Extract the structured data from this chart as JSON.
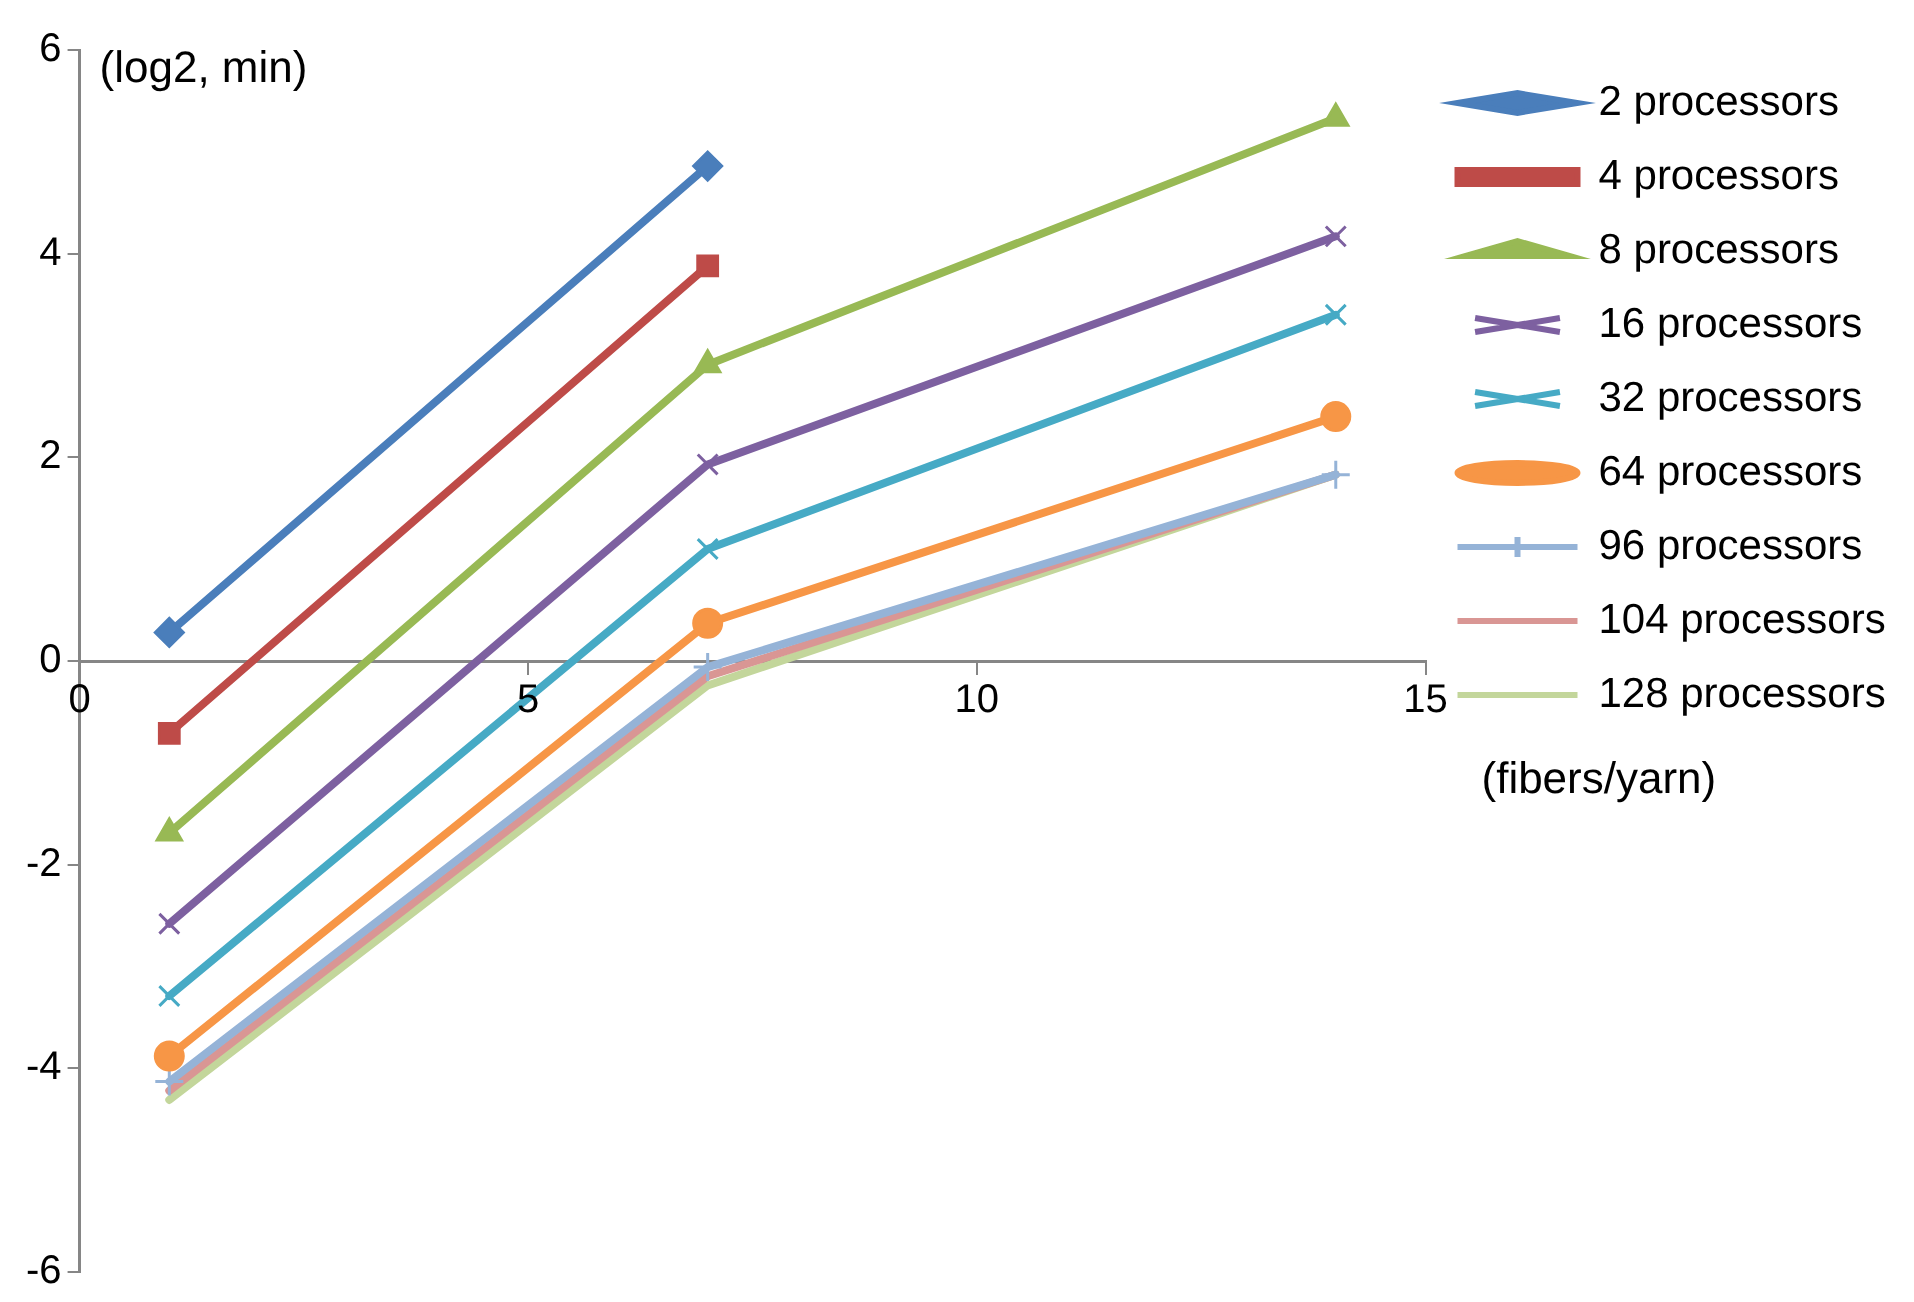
{
  "chart_data": {
    "type": "line",
    "xlabel": "(fibers/yarn)",
    "ylabel": "(log2, min)",
    "xlim": [
      0,
      15
    ],
    "xticks": [
      0,
      5,
      10,
      15
    ],
    "ylim": [
      -6,
      6
    ],
    "yticks": [
      -6,
      -4,
      -2,
      0,
      2,
      4,
      6
    ],
    "grid": false,
    "legend": "right",
    "line_style": "solid",
    "series": [
      {
        "name": "2 processors",
        "color": "#4a7ebb",
        "marker": "diamond",
        "x": [
          1,
          7
        ],
        "values": [
          0.28,
          4.86
        ]
      },
      {
        "name": "4 processors",
        "color": "#be4b48",
        "marker": "square",
        "x": [
          1,
          7
        ],
        "values": [
          -0.71,
          3.88
        ]
      },
      {
        "name": "8 processors",
        "color": "#98b954",
        "marker": "triangle",
        "x": [
          1,
          7,
          14
        ],
        "values": [
          -1.69,
          2.91,
          5.33
        ]
      },
      {
        "name": "16 processors",
        "color": "#7d60a0",
        "marker": "cross",
        "x": [
          1,
          7,
          14
        ],
        "values": [
          -2.58,
          1.93,
          4.17
        ]
      },
      {
        "name": "32 processors",
        "color": "#46aac5",
        "marker": "cross",
        "x": [
          1,
          7,
          14
        ],
        "values": [
          -3.29,
          1.1,
          3.4
        ]
      },
      {
        "name": "64 processors",
        "color": "#f79646",
        "marker": "circle",
        "x": [
          1,
          7,
          14
        ],
        "values": [
          -3.88,
          0.37,
          2.4
        ]
      },
      {
        "name": "96 processors",
        "color": "#95b3d7",
        "marker": "plus",
        "x": [
          1,
          7,
          14
        ],
        "values": [
          -4.13,
          -0.06,
          1.83
        ]
      },
      {
        "name": "104 processors",
        "color": "#d99694",
        "marker": "none",
        "x": [
          1,
          7,
          14
        ],
        "values": [
          -4.22,
          -0.15,
          1.83
        ]
      },
      {
        "name": "128 processors",
        "color": "#c3d69b",
        "marker": "none",
        "x": [
          1,
          7,
          14
        ],
        "values": [
          -4.31,
          -0.24,
          1.83
        ]
      }
    ]
  }
}
